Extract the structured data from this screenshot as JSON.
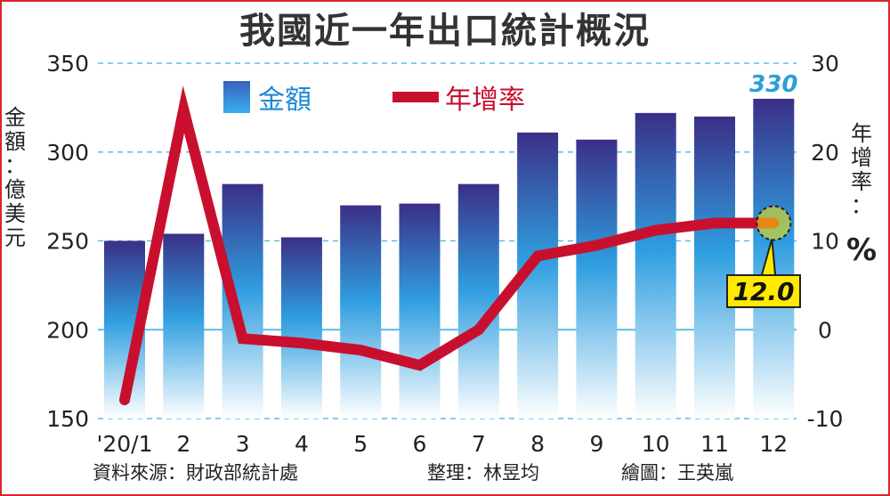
{
  "title": "我國近一年出口統計概況",
  "chart_data": {
    "type": "bar+line",
    "categories": [
      "'20/1",
      "2",
      "3",
      "4",
      "5",
      "6",
      "7",
      "8",
      "9",
      "10",
      "11",
      "12"
    ],
    "series": [
      {
        "name": "金額",
        "type": "bar",
        "axis": "left",
        "values": [
          250,
          254,
          282,
          252,
          270,
          271,
          282,
          311,
          307,
          322,
          320,
          330
        ]
      },
      {
        "name": "年增率",
        "type": "line",
        "axis": "right",
        "values": [
          -7.9,
          24.8,
          -1.0,
          -1.5,
          -2.3,
          -4.0,
          0.0,
          8.3,
          9.5,
          11.2,
          12.0,
          12.0
        ]
      }
    ],
    "left_axis": {
      "label": [
        "金",
        "額",
        "：",
        "億",
        "美",
        "元"
      ],
      "ylim": [
        150,
        350
      ],
      "ticks": [
        150,
        200,
        250,
        300,
        350
      ]
    },
    "right_axis": {
      "label": [
        "年",
        "增",
        "率",
        "："
      ],
      "unit": "%",
      "ylim": [
        -10,
        30
      ],
      "ticks": [
        -10,
        0,
        10,
        20,
        30
      ]
    },
    "annotations": [
      {
        "series": "金額",
        "category": "12",
        "text": "330"
      },
      {
        "series": "年增率",
        "category": "12",
        "text": "12.0"
      }
    ],
    "grid": "dashed horizontal",
    "legend": "top-left"
  },
  "colors": {
    "bar_top": "#3b2f86",
    "bar_mid": "#2f9ee0",
    "bar_bottom": "#ffffff",
    "line": "#c8102e",
    "grid": "#59bde8",
    "annotation_blue": "#2a9fd8",
    "callout_fill": "#ffea00",
    "frame": "#d9262c"
  },
  "credits": {
    "source": "資料來源：財政部統計處",
    "editor": "整理：林昱均",
    "artist": "繪圖：王英嵐"
  }
}
